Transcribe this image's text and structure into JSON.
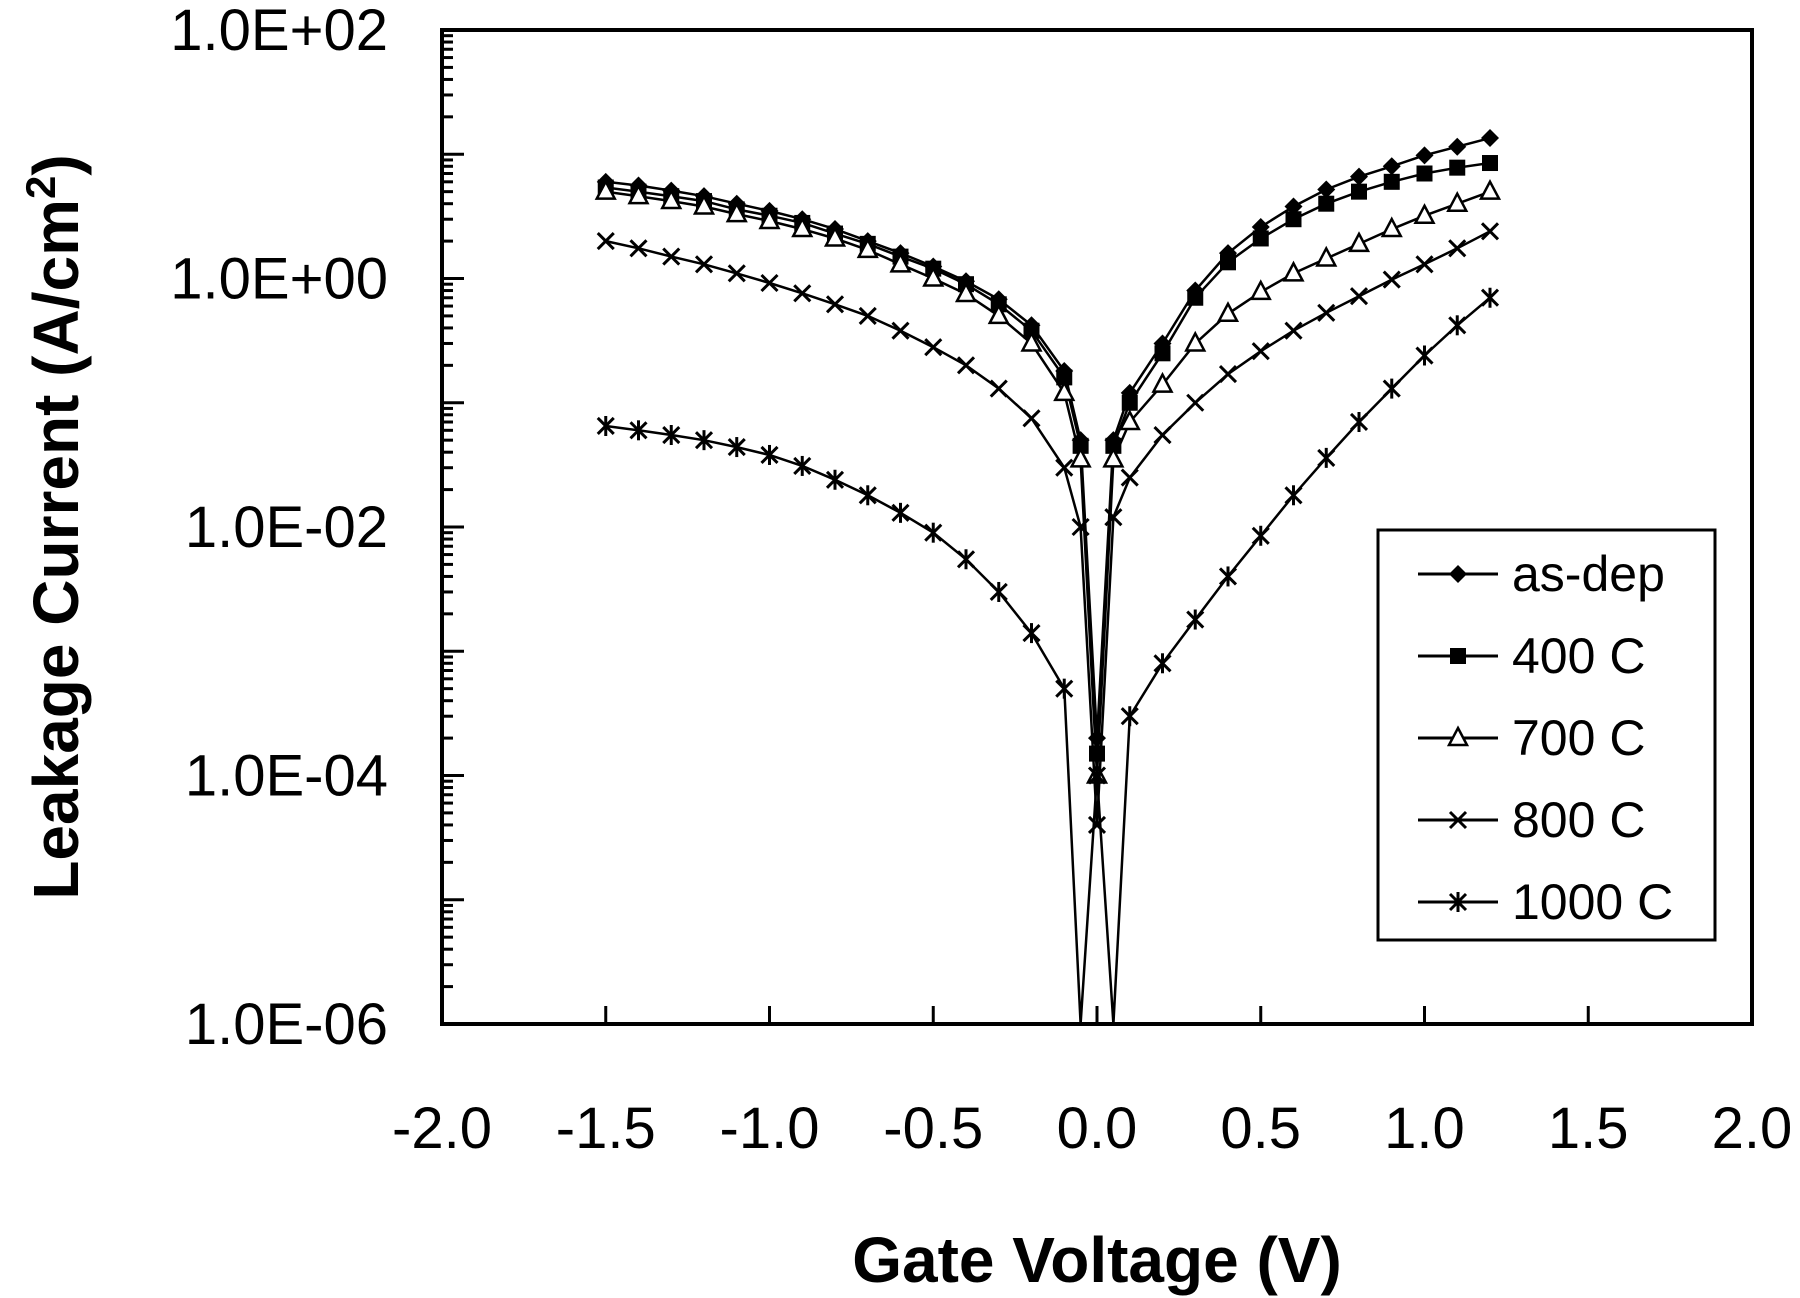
{
  "chart_data": {
    "type": "line",
    "xlabel": "Gate Voltage (V)",
    "ylabel_main": "Leakage Current (A/cm",
    "ylabel_sup": "2",
    "ylabel_close": ")",
    "xlim": [
      -2.0,
      2.0
    ],
    "ylim": [
      1e-06,
      100
    ],
    "yscale": "log",
    "grid": false,
    "legend_position": "right",
    "x_ticks": [
      -2.0,
      -1.5,
      -1.0,
      -0.5,
      0.0,
      0.5,
      1.0,
      1.5,
      2.0
    ],
    "x_tick_labels": [
      "-2.0",
      "-1.5",
      "-1.0",
      "-0.5",
      "0.0",
      "0.5",
      "1.0",
      "1.5",
      "2.0"
    ],
    "y_ticks": [
      100.0,
      1.0,
      0.01,
      0.0001,
      1e-06
    ],
    "y_tick_labels": [
      "1.0E+02",
      "1.0E+00",
      "1.0E-02",
      "1.0E-04",
      "1.0E-06"
    ],
    "series": [
      {
        "name": "as-dep",
        "marker": "diamond",
        "x": [
          -1.5,
          -1.4,
          -1.3,
          -1.2,
          -1.1,
          -1.0,
          -0.9,
          -0.8,
          -0.7,
          -0.6,
          -0.5,
          -0.4,
          -0.3,
          -0.2,
          -0.1,
          -0.05,
          0.0,
          0.05,
          0.1,
          0.2,
          0.3,
          0.4,
          0.5,
          0.6,
          0.7,
          0.8,
          0.9,
          1.0,
          1.1,
          1.2
        ],
        "y": [
          6.0,
          5.6,
          5.1,
          4.6,
          4.0,
          3.5,
          3.0,
          2.5,
          2.0,
          1.6,
          1.25,
          0.95,
          0.68,
          0.42,
          0.18,
          0.05,
          0.0002,
          0.05,
          0.12,
          0.3,
          0.8,
          1.6,
          2.6,
          3.8,
          5.2,
          6.6,
          8.0,
          9.8,
          11.5,
          13.5
        ]
      },
      {
        "name": "400 C",
        "marker": "square",
        "x": [
          -1.5,
          -1.4,
          -1.3,
          -1.2,
          -1.1,
          -1.0,
          -0.9,
          -0.8,
          -0.7,
          -0.6,
          -0.5,
          -0.4,
          -0.3,
          -0.2,
          -0.1,
          -0.05,
          0.0,
          0.05,
          0.1,
          0.2,
          0.3,
          0.4,
          0.5,
          0.6,
          0.7,
          0.8,
          0.9,
          1.0,
          1.1,
          1.2
        ],
        "y": [
          5.4,
          5.0,
          4.6,
          4.2,
          3.6,
          3.2,
          2.8,
          2.3,
          1.9,
          1.5,
          1.2,
          0.9,
          0.62,
          0.38,
          0.16,
          0.045,
          0.00015,
          0.045,
          0.1,
          0.25,
          0.7,
          1.35,
          2.1,
          3.0,
          4.0,
          5.0,
          6.0,
          7.0,
          7.8,
          8.5
        ]
      },
      {
        "name": "700 C",
        "marker": "triangle",
        "x": [
          -1.5,
          -1.4,
          -1.3,
          -1.2,
          -1.1,
          -1.0,
          -0.9,
          -0.8,
          -0.7,
          -0.6,
          -0.5,
          -0.4,
          -0.3,
          -0.2,
          -0.1,
          -0.05,
          0.0,
          0.05,
          0.1,
          0.2,
          0.3,
          0.4,
          0.5,
          0.6,
          0.7,
          0.8,
          0.9,
          1.0,
          1.1,
          1.2
        ],
        "y": [
          5.0,
          4.6,
          4.2,
          3.8,
          3.3,
          2.9,
          2.5,
          2.1,
          1.7,
          1.3,
          1.0,
          0.75,
          0.5,
          0.3,
          0.12,
          0.035,
          0.0001,
          0.035,
          0.07,
          0.14,
          0.3,
          0.52,
          0.78,
          1.1,
          1.45,
          1.9,
          2.5,
          3.2,
          4.0,
          5.0
        ]
      },
      {
        "name": "800 C",
        "marker": "x",
        "x": [
          -1.5,
          -1.4,
          -1.3,
          -1.2,
          -1.1,
          -1.0,
          -0.9,
          -0.8,
          -0.7,
          -0.6,
          -0.5,
          -0.4,
          -0.3,
          -0.2,
          -0.1,
          -0.05,
          0.0,
          0.05,
          0.1,
          0.2,
          0.3,
          0.4,
          0.5,
          0.6,
          0.7,
          0.8,
          0.9,
          1.0,
          1.1,
          1.2
        ],
        "y": [
          2.0,
          1.75,
          1.5,
          1.3,
          1.1,
          0.92,
          0.76,
          0.62,
          0.5,
          0.38,
          0.28,
          0.2,
          0.13,
          0.075,
          0.03,
          0.01,
          4e-05,
          0.012,
          0.025,
          0.055,
          0.1,
          0.17,
          0.26,
          0.38,
          0.53,
          0.72,
          0.98,
          1.3,
          1.75,
          2.4
        ]
      },
      {
        "name": "1000 C",
        "marker": "asterisk",
        "x": [
          -1.5,
          -1.4,
          -1.3,
          -1.2,
          -1.1,
          -1.0,
          -0.9,
          -0.8,
          -0.7,
          -0.6,
          -0.5,
          -0.4,
          -0.3,
          -0.2,
          -0.1,
          -0.05,
          0.0,
          0.05,
          0.1,
          0.2,
          0.3,
          0.4,
          0.5,
          0.6,
          0.7,
          0.8,
          0.9,
          1.0,
          1.1,
          1.2
        ],
        "y": [
          0.065,
          0.06,
          0.055,
          0.05,
          0.044,
          0.038,
          0.031,
          0.024,
          0.018,
          0.013,
          0.009,
          0.0055,
          0.003,
          0.0014,
          0.0005,
          1e-06,
          0.0001,
          1e-06,
          0.0003,
          0.0008,
          0.0018,
          0.004,
          0.0085,
          0.018,
          0.036,
          0.07,
          0.13,
          0.24,
          0.42,
          0.7
        ]
      }
    ]
  }
}
